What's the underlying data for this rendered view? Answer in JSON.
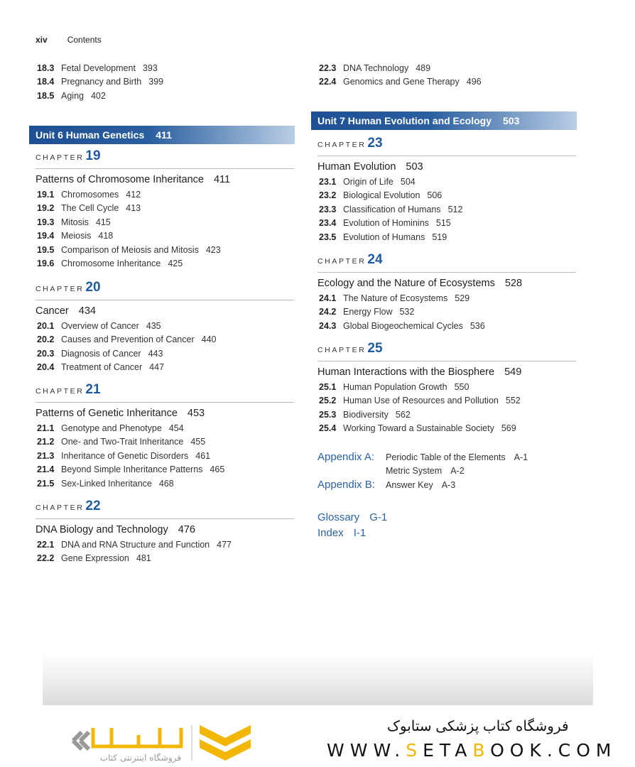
{
  "header": {
    "page_number": "xiv",
    "running_title": "Contents"
  },
  "left_top_sections": [
    {
      "num": "18.3",
      "title": "Fetal Development",
      "page": "393"
    },
    {
      "num": "18.4",
      "title": "Pregnancy and Birth",
      "page": "399"
    },
    {
      "num": "18.5",
      "title": "Aging",
      "page": "402"
    }
  ],
  "right_top_sections": [
    {
      "num": "22.3",
      "title": "DNA Technology",
      "page": "489"
    },
    {
      "num": "22.4",
      "title": "Genomics and Gene Therapy",
      "page": "496"
    }
  ],
  "units": [
    {
      "label": "Unit 6  Human Genetics",
      "page": "411"
    },
    {
      "label": "Unit 7  Human Evolution and Ecology",
      "page": "503"
    }
  ],
  "chapter_word": "CHAPTER",
  "chapters": [
    {
      "number": "19",
      "title": "Patterns of Chromosome Inheritance",
      "page": "411",
      "sections": [
        {
          "num": "19.1",
          "title": "Chromosomes",
          "page": "412"
        },
        {
          "num": "19.2",
          "title": "The Cell Cycle",
          "page": "413"
        },
        {
          "num": "19.3",
          "title": "Mitosis",
          "page": "415"
        },
        {
          "num": "19.4",
          "title": "Meiosis",
          "page": "418"
        },
        {
          "num": "19.5",
          "title": "Comparison of Meiosis and Mitosis",
          "page": "423"
        },
        {
          "num": "19.6",
          "title": "Chromosome Inheritance",
          "page": "425"
        }
      ]
    },
    {
      "number": "20",
      "title": "Cancer",
      "page": "434",
      "sections": [
        {
          "num": "20.1",
          "title": "Overview of Cancer",
          "page": "435"
        },
        {
          "num": "20.2",
          "title": "Causes and Prevention of Cancer",
          "page": "440"
        },
        {
          "num": "20.3",
          "title": "Diagnosis of Cancer",
          "page": "443"
        },
        {
          "num": "20.4",
          "title": "Treatment of Cancer",
          "page": "447"
        }
      ]
    },
    {
      "number": "21",
      "title": "Patterns of Genetic Inheritance",
      "page": "453",
      "sections": [
        {
          "num": "21.1",
          "title": "Genotype and Phenotype",
          "page": "454"
        },
        {
          "num": "21.2",
          "title": "One- and Two-Trait Inheritance",
          "page": "455"
        },
        {
          "num": "21.3",
          "title": "Inheritance of Genetic Disorders",
          "page": "461"
        },
        {
          "num": "21.4",
          "title": "Beyond Simple Inheritance Patterns",
          "page": "465"
        },
        {
          "num": "21.5",
          "title": "Sex-Linked Inheritance",
          "page": "468"
        }
      ]
    },
    {
      "number": "22",
      "title": "DNA Biology and Technology",
      "page": "476",
      "sections": [
        {
          "num": "22.1",
          "title": "DNA and RNA Structure and Function",
          "page": "477"
        },
        {
          "num": "22.2",
          "title": "Gene Expression",
          "page": "481"
        }
      ]
    },
    {
      "number": "23",
      "title": "Human Evolution",
      "page": "503",
      "sections": [
        {
          "num": "23.1",
          "title": "Origin of Life",
          "page": "504"
        },
        {
          "num": "23.2",
          "title": "Biological Evolution",
          "page": "506"
        },
        {
          "num": "23.3",
          "title": "Classification of Humans",
          "page": "512"
        },
        {
          "num": "23.4",
          "title": "Evolution of Hominins",
          "page": "515"
        },
        {
          "num": "23.5",
          "title": "Evolution of Humans",
          "page": "519"
        }
      ]
    },
    {
      "number": "24",
      "title": "Ecology and the Nature of Ecosystems",
      "page": "528",
      "sections": [
        {
          "num": "24.1",
          "title": "The Nature of Ecosystems",
          "page": "529"
        },
        {
          "num": "24.2",
          "title": "Energy Flow",
          "page": "532"
        },
        {
          "num": "24.3",
          "title": "Global Biogeochemical Cycles",
          "page": "536"
        }
      ]
    },
    {
      "number": "25",
      "title": "Human Interactions with the Biosphere",
      "page": "549",
      "sections": [
        {
          "num": "25.1",
          "title": "Human Population Growth",
          "page": "550"
        },
        {
          "num": "25.2",
          "title": "Human Use of Resources and Pollution",
          "page": "552"
        },
        {
          "num": "25.3",
          "title": "Biodiversity",
          "page": "562"
        },
        {
          "num": "25.4",
          "title": "Working Toward a Sustainable Society",
          "page": "569"
        }
      ]
    }
  ],
  "appendices": [
    {
      "label": "Appendix A:",
      "title": "Periodic Table of the Elements",
      "page": "A-1"
    },
    {
      "label": "",
      "title": "Metric System",
      "page": "A-2"
    },
    {
      "label": "Appendix B:",
      "title": "Answer Key",
      "page": "A-3"
    }
  ],
  "back_matter": [
    {
      "title": "Glossary",
      "page": "G-1"
    },
    {
      "title": "Index",
      "page": "I-1"
    }
  ],
  "watermark": {
    "store_name_fa": "فروشگاه کتاب پزشکی ستابوک",
    "url_parts": [
      "WWW.",
      "S",
      "ETA",
      "B",
      "OOK.COM"
    ],
    "logo_text_fa": "ستابوک",
    "logo_tagline_fa": "فروشگاه اینترنتی کتاب",
    "accent_color": "#f2b705"
  },
  "colors": {
    "accent_blue": "#1f5aa0",
    "unit_bar": "#1d4f94"
  }
}
